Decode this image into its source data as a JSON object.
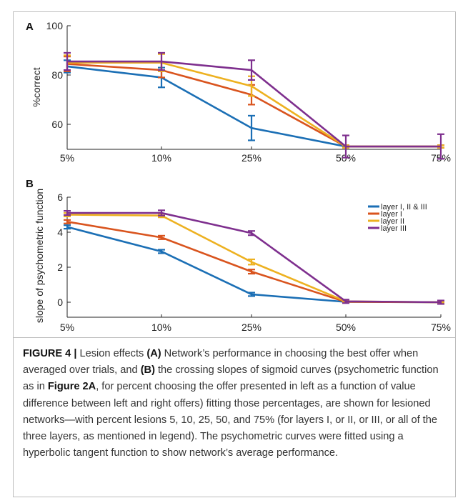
{
  "chart_data": [
    {
      "panel": "A",
      "type": "line",
      "categories": [
        "5%",
        "10%",
        "25%",
        "50%",
        "75%"
      ],
      "ylabel": "%correct",
      "ylim": [
        50,
        100
      ],
      "yticks": [
        60,
        80,
        100
      ],
      "series": [
        {
          "name": "layer I, II & III",
          "color": "#1b6fb5",
          "values": [
            83.5,
            79,
            58.5,
            51,
            51
          ],
          "err": [
            2.5,
            4,
            5,
            0.5,
            0.5
          ]
        },
        {
          "name": "layer I",
          "color": "#d9541e",
          "values": [
            84.5,
            82,
            72,
            51,
            51
          ],
          "err": [
            3,
            3,
            4,
            0.5,
            0.5
          ]
        },
        {
          "name": "layer II",
          "color": "#edb120",
          "values": [
            85,
            85,
            75.5,
            51,
            51
          ],
          "err": [
            3,
            3.5,
            4,
            0.5,
            0.5
          ]
        },
        {
          "name": "layer III",
          "color": "#7e2f8e",
          "values": [
            85.5,
            85.5,
            82,
            51,
            51
          ],
          "err": [
            3.5,
            3.5,
            4,
            4.5,
            5
          ]
        }
      ]
    },
    {
      "panel": "B",
      "type": "line",
      "categories": [
        "5%",
        "10%",
        "25%",
        "50%",
        "75%"
      ],
      "ylabel": "slope of psychometric function",
      "ylim": [
        -0.8,
        6
      ],
      "yticks": [
        0,
        2,
        4,
        6
      ],
      "legend": "top-right",
      "series": [
        {
          "name": "layer I, II & III",
          "color": "#1b6fb5",
          "values": [
            4.3,
            2.9,
            0.45,
            0.02,
            0
          ],
          "err": [
            0.1,
            0.1,
            0.1,
            0.05,
            0.05
          ]
        },
        {
          "name": "layer I",
          "color": "#d9541e",
          "values": [
            4.6,
            3.7,
            1.75,
            0.02,
            0
          ],
          "err": [
            0.1,
            0.1,
            0.12,
            0.05,
            0.05
          ]
        },
        {
          "name": "layer II",
          "color": "#edb120",
          "values": [
            5.0,
            4.95,
            2.3,
            0.05,
            0
          ],
          "err": [
            0.1,
            0.1,
            0.15,
            0.05,
            0.05
          ]
        },
        {
          "name": "layer III",
          "color": "#7e2f8e",
          "values": [
            5.1,
            5.1,
            3.95,
            0.05,
            0
          ],
          "err": [
            0.12,
            0.15,
            0.12,
            0.1,
            0.1
          ]
        }
      ]
    }
  ],
  "caption": {
    "figure_label": "FIGURE 4 |",
    "t1": " Lesion effects ",
    "a": "(A)",
    "t2": " Network’s performance in choosing the best offer when averaged over trials, and ",
    "b": "(B)",
    "t3": " the crossing slopes of sigmoid curves (psychometric function as in ",
    "fig_ref": "Figure 2A",
    "t4": ", for percent choosing the offer presented in left as a function of value difference between left and right offers) fitting those percentages, are shown for lesioned networks—with percent lesions 5, 10, 25, 50, and 75% (for layers I, or II, or III, or all of the three layers, as mentioned in legend). The psychometric curves were fitted using a hyperbolic tangent function to show network’s average performance."
  }
}
